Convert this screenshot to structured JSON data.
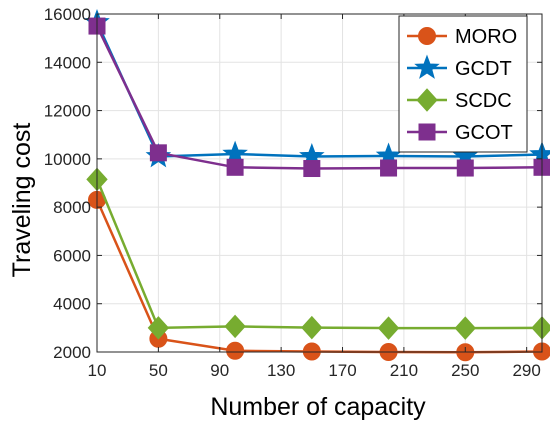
{
  "chart_data": {
    "type": "line",
    "title": "",
    "xlabel": "Number of capacity",
    "ylabel": "Traveling cost",
    "x": [
      10,
      50,
      100,
      150,
      200,
      250,
      300
    ],
    "xlim": [
      10,
      300
    ],
    "ylim": [
      2000,
      16000
    ],
    "x_ticks": [
      "10",
      "50",
      "90",
      "130",
      "170",
      "210",
      "250",
      "290"
    ],
    "y_ticks": [
      "2000",
      "4000",
      "6000",
      "8000",
      "10000",
      "12000",
      "14000",
      "16000"
    ],
    "grid": true,
    "legend_position": "top-right",
    "series": [
      {
        "name": "MORO",
        "marker": "circle",
        "color": "#d95319",
        "values": [
          8300,
          2550,
          2050,
          2020,
          2000,
          1990,
          2020
        ]
      },
      {
        "name": "GCDT",
        "marker": "star",
        "color": "#0072bd",
        "values": [
          15650,
          10100,
          10200,
          10100,
          10120,
          10100,
          10180
        ]
      },
      {
        "name": "SCDC",
        "marker": "diamond",
        "color": "#77ac30",
        "values": [
          9150,
          3000,
          3060,
          3010,
          2990,
          2990,
          3000
        ]
      },
      {
        "name": "GCOT",
        "marker": "square",
        "color": "#7e2f8e",
        "values": [
          15500,
          10250,
          9650,
          9600,
          9620,
          9620,
          9650
        ]
      }
    ]
  }
}
